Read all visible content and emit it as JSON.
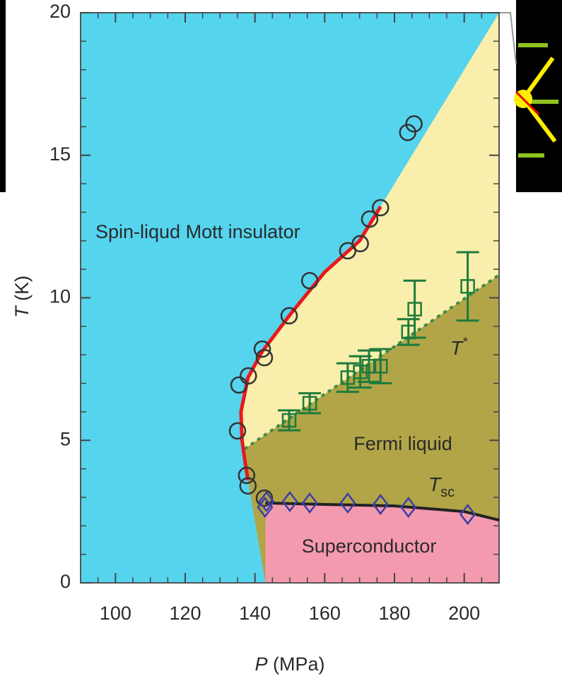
{
  "chart_data": {
    "type": "scatter",
    "xlabel": {
      "symbol": "P",
      "unit": "(MPa)"
    },
    "ylabel": {
      "symbol": "T",
      "unit": "(K)"
    },
    "xlim": [
      90,
      210
    ],
    "ylim": [
      0,
      20
    ],
    "xticks": [
      100,
      120,
      140,
      160,
      180,
      200
    ],
    "yticks": [
      0,
      5,
      10,
      15,
      20
    ],
    "xminorticks": [
      95,
      105,
      110,
      115,
      125,
      130,
      135,
      145,
      150,
      155,
      165,
      170,
      175,
      185,
      190,
      195,
      205
    ],
    "yminorticks": [
      1,
      2,
      3,
      4,
      6,
      7,
      8,
      9,
      11,
      12,
      13,
      14,
      16,
      17,
      18,
      19
    ],
    "region_colors": {
      "insulator": "#55d4ee",
      "crossover": "#f9eeab",
      "fermi": "#b1a547",
      "superconductor": "#f49aae"
    },
    "mott_points": {
      "color": "#333333",
      "x": [
        135.4,
        135,
        138.1,
        137.6,
        138,
        142.1,
        142.7,
        142.7,
        149.8,
        155.7,
        166.6,
        170.2,
        172.9,
        176,
        183.8,
        185.6
      ],
      "y": [
        6.94,
        5.33,
        7.26,
        3.77,
        3.4,
        8.2,
        7.9,
        2.97,
        9.37,
        10.6,
        11.65,
        11.9,
        12.76,
        13.16,
        15.8,
        16.1
      ]
    },
    "tstar_points": {
      "color": "#1e7b3c",
      "x": [
        149.8,
        155.7,
        166.6,
        170.2,
        172.7,
        176,
        184,
        185.8,
        201
      ],
      "y": [
        5.7,
        6.3,
        7.2,
        7.4,
        7.6,
        7.6,
        8.8,
        9.6,
        10.4
      ],
      "errors": [
        0.35,
        0.35,
        0.5,
        0.55,
        0.55,
        0.6,
        0.45,
        1.0,
        1.2
      ]
    },
    "tsc_points": {
      "color": "#3b3fa5",
      "x": [
        142.9,
        143.3,
        150,
        155.7,
        166.6,
        176,
        184,
        201
      ],
      "y": [
        2.65,
        2.85,
        2.85,
        2.8,
        2.8,
        2.75,
        2.65,
        2.4
      ]
    },
    "mott_line": {
      "color": "#e8191c",
      "x": [
        176,
        170,
        160,
        150,
        142,
        138,
        136,
        136.3,
        137.2,
        138
      ],
      "y": [
        13.2,
        12.0,
        10.9,
        9.4,
        8.1,
        7.2,
        6.0,
        5.0,
        4.2,
        3.6
      ]
    },
    "tsc_line": {
      "color": "#222222",
      "x": [
        143,
        160,
        180,
        200,
        210
      ],
      "y": [
        2.8,
        2.75,
        2.7,
        2.5,
        2.2
      ]
    },
    "tstar_line": {
      "color": "#3d8a4e",
      "x": [
        137,
        210
      ],
      "y": [
        4.7,
        10.8
      ]
    },
    "annotations": [
      "Spin-liqud Mott insulator",
      "Fermi liquid",
      "Superconductor"
    ],
    "tstar_label": {
      "main": "T",
      "sup": "*"
    },
    "tsc_label": {
      "main": "T",
      "sub": "sc"
    }
  }
}
